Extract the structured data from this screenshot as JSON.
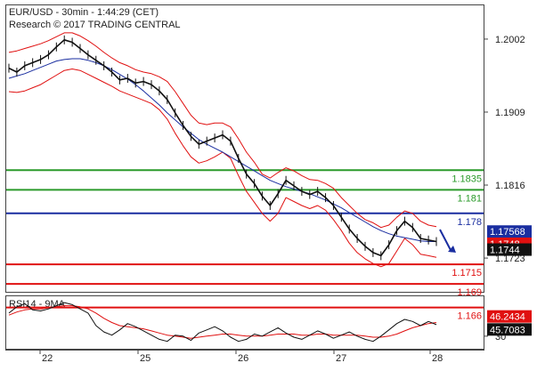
{
  "header": {
    "title": "EUR/USD - 30min - 1:44:29 (CET)",
    "credit": "Research © 2017 TRADING CENTRAL"
  },
  "chart_data": [
    {
      "type": "line",
      "panel": "price",
      "title": "EUR/USD - 30min - 1:44:29 (CET)",
      "ylim": [
        1.168,
        1.2045
      ],
      "y_ticks": [
        "1.2002",
        "1.1909",
        "1.1816",
        "1.1723"
      ],
      "x_ticks": [
        "22",
        "25",
        "26",
        "27",
        "28"
      ],
      "colors": {
        "price": "#111111",
        "ma": "#1a2ea0",
        "bands": "#e01010",
        "support": "#e01010",
        "resistance": "#2a9a2a",
        "pivot": "#1a2ea0"
      },
      "series": [
        {
          "values": [
            1.1965,
            1.196,
            1.1968,
            1.1972,
            1.1976,
            1.1982,
            1.1992,
            1.2001,
            1.1998,
            1.199,
            1.1982,
            1.1975,
            1.1968,
            1.196,
            1.195,
            1.1952,
            1.1946,
            1.1948,
            1.1944,
            1.1936,
            1.1925,
            1.1908,
            1.1892,
            1.1878,
            1.1868,
            1.1872,
            1.1876,
            1.188,
            1.1872,
            1.185,
            1.183,
            1.1818,
            1.1802,
            1.179,
            1.1805,
            1.1822,
            1.1815,
            1.1808,
            1.1804,
            1.1808,
            1.18,
            1.179,
            1.1775,
            1.176,
            1.1748,
            1.1738,
            1.173,
            1.1726,
            1.174,
            1.1758,
            1.177,
            1.1762,
            1.1748,
            1.1746,
            1.1744
          ]
        },
        {
          "values": [
            1.1952,
            1.1955,
            1.1958,
            1.1962,
            1.1966,
            1.197,
            1.1974,
            1.1976,
            1.1977,
            1.1977,
            1.1975,
            1.1972,
            1.1968,
            1.1963,
            1.1957,
            1.1951,
            1.1944,
            1.1936,
            1.1927,
            1.1918,
            1.1908,
            1.1899,
            1.189,
            1.1882,
            1.1874,
            1.1868,
            1.1863,
            1.1858,
            1.1852,
            1.1846,
            1.184,
            1.1834,
            1.1828,
            1.1822,
            1.1818,
            1.1814,
            1.1811,
            1.1808,
            1.1805,
            1.1801,
            1.1797,
            1.1792,
            1.1787,
            1.1781,
            1.1775,
            1.1769,
            1.1763,
            1.1758,
            1.1754,
            1.1751,
            1.1749,
            1.1747,
            1.1745,
            1.1744,
            1.1744
          ]
        },
        {
          "values": [
            1.1985,
            1.1987,
            1.199,
            1.1993,
            1.1996,
            1.2,
            1.2005,
            1.201,
            1.201,
            1.2006,
            1.2,
            1.1993,
            1.1985,
            1.1978,
            1.1972,
            1.1968,
            1.1963,
            1.196,
            1.1958,
            1.1954,
            1.1948,
            1.1935,
            1.192,
            1.1905,
            1.1895,
            1.1893,
            1.1895,
            1.1895,
            1.189,
            1.1875,
            1.1858,
            1.1845,
            1.183,
            1.1825,
            1.1832,
            1.1838,
            1.1834,
            1.1828,
            1.1823,
            1.1822,
            1.1818,
            1.1812,
            1.18,
            1.179,
            1.178,
            1.1772,
            1.1768,
            1.1762,
            1.1765,
            1.1775,
            1.1783,
            1.178,
            1.177,
            1.1765,
            1.1763
          ]
        },
        {
          "values": [
            1.1935,
            1.1934,
            1.1936,
            1.194,
            1.1944,
            1.195,
            1.1956,
            1.1962,
            1.1964,
            1.1962,
            1.1957,
            1.1952,
            1.1947,
            1.1942,
            1.1936,
            1.1932,
            1.1928,
            1.1924,
            1.192,
            1.1912,
            1.19,
            1.1882,
            1.1866,
            1.1852,
            1.1844,
            1.1847,
            1.1852,
            1.1858,
            1.185,
            1.1828,
            1.1808,
            1.1794,
            1.178,
            1.177,
            1.178,
            1.18,
            1.1795,
            1.179,
            1.1786,
            1.179,
            1.1784,
            1.1772,
            1.1758,
            1.1742,
            1.173,
            1.1722,
            1.1716,
            1.1712,
            1.1716,
            1.1732,
            1.1748,
            1.174,
            1.1728,
            1.1726,
            1.1724
          ]
        }
      ],
      "levels": [
        {
          "value": 1.1835,
          "label": "1.1835",
          "kind": "resistance"
        },
        {
          "value": 1.181,
          "label": "1.181",
          "kind": "resistance"
        },
        {
          "value": 1.178,
          "label": "1.178",
          "kind": "pivot"
        },
        {
          "value": 1.1715,
          "label": "1.1715",
          "kind": "support"
        },
        {
          "value": 1.169,
          "label": "1.169",
          "kind": "support"
        },
        {
          "value": 1.166,
          "label": "1.166",
          "kind": "support"
        }
      ],
      "price_tags": [
        {
          "value": 1.17568,
          "label": "1.17568",
          "color": "#1a2ea0"
        },
        {
          "value": 1.1748,
          "label": "1.1748",
          "color": "#e01010"
        },
        {
          "value": 1.1744,
          "label": "1.1744",
          "color": "#111111"
        }
      ]
    },
    {
      "type": "line",
      "panel": "indicator",
      "title": "RSI14 - 9MA",
      "ylim": [
        18,
        68
      ],
      "y_ticks": [
        "30"
      ],
      "series": [
        {
          "values": [
            52,
            58,
            61,
            55,
            54,
            56,
            59,
            62,
            60,
            56,
            52,
            40,
            34,
            31,
            36,
            42,
            39,
            35,
            31,
            27,
            25,
            31,
            30,
            26,
            33,
            36,
            39,
            35,
            29,
            25,
            27,
            32,
            30,
            34,
            38,
            33,
            29,
            27,
            31,
            35,
            32,
            28,
            31,
            34,
            30,
            27,
            25,
            30,
            36,
            42,
            46,
            44,
            40,
            44,
            41
          ]
        },
        {
          "values": [
            50,
            53,
            55,
            56,
            56,
            57,
            58,
            59,
            59,
            58,
            56,
            52,
            47,
            43,
            40,
            39,
            38,
            37,
            35,
            33,
            31,
            30,
            29,
            28,
            29,
            30,
            31,
            32,
            32,
            31,
            30,
            30,
            30,
            31,
            32,
            32,
            32,
            31,
            31,
            32,
            32,
            31,
            31,
            31,
            31,
            30,
            29,
            29,
            30,
            32,
            35,
            38,
            40,
            42,
            43
          ]
        }
      ],
      "value_tags": [
        {
          "value": 46.2434,
          "label": "46.2434",
          "color": "#e01010"
        },
        {
          "value": 45.7083,
          "label": "45.7083",
          "color": "#111111"
        }
      ]
    }
  ]
}
